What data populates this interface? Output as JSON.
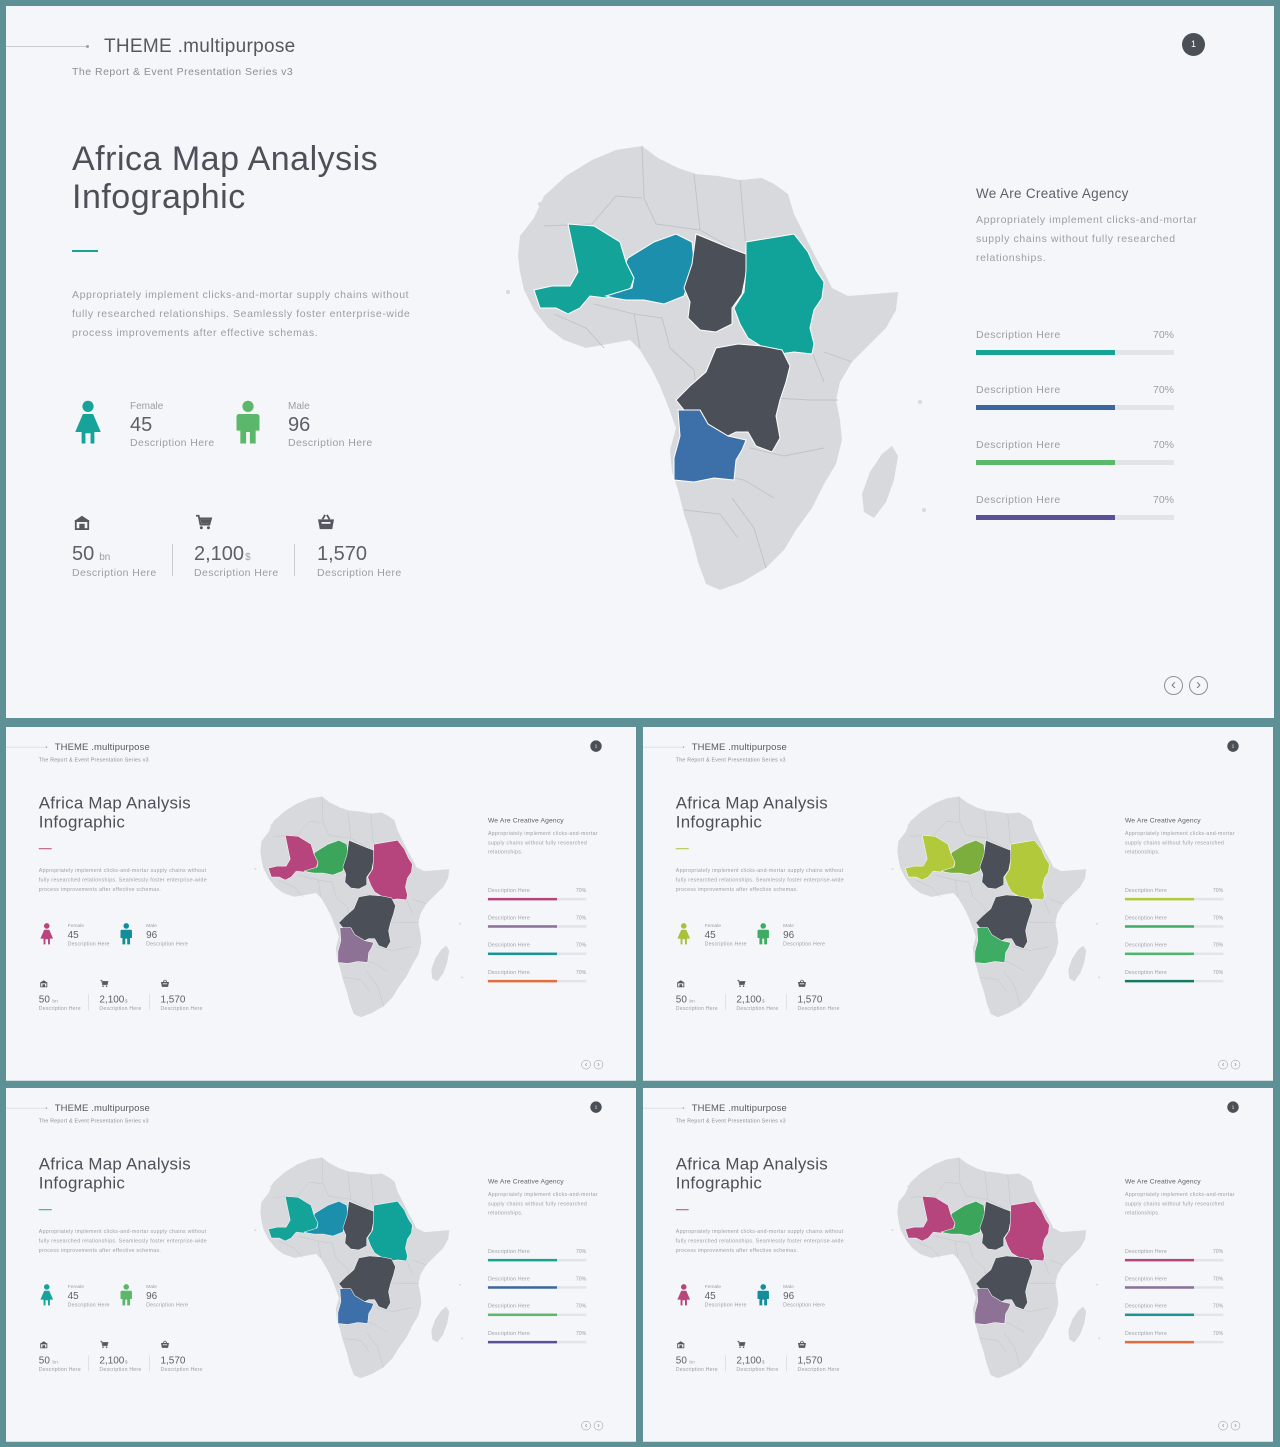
{
  "brand": "THEME .multipurpose",
  "series": "The Report & Event Presentation Series v3",
  "page_number": "1",
  "title_line1": "Africa Map Analysis",
  "title_line2": "Infographic",
  "intro": "Appropriately implement clicks-and-mortar supply chains without fully researched relationships. Seamlessly foster enterprise-wide process improvements after effective schemas.",
  "people": [
    {
      "label": "Female",
      "value": "45",
      "desc": "Description Here",
      "icon": "female-icon"
    },
    {
      "label": "Male",
      "value": "96",
      "desc": "Description Here",
      "icon": "male-icon"
    }
  ],
  "stats": [
    {
      "value": "50",
      "unit": "bn",
      "desc": "Description Here",
      "icon": "store-icon"
    },
    {
      "value": "2,100",
      "unit": "$",
      "desc": "Description Here",
      "icon": "cart-icon"
    },
    {
      "value": "1,570",
      "unit": "",
      "desc": "Description Here",
      "icon": "basket-icon"
    }
  ],
  "agency_title": "We Are Creative Agency",
  "agency_text": "Appropriately implement clicks-and-mortar supply chains without fully researched relationships.",
  "bars": [
    {
      "label": "Description Here",
      "value_text": "70%",
      "value": 0.7
    },
    {
      "label": "Description Here",
      "value_text": "70%",
      "value": 0.7
    },
    {
      "label": "Description Here",
      "value_text": "70%",
      "value": 0.7
    },
    {
      "label": "Description Here",
      "value_text": "70%",
      "value": 0.7
    }
  ],
  "nav": {
    "prev": "‹",
    "next": "›"
  },
  "colors": {
    "land": "#d7d9dd",
    "dark_country": "#4b4f58",
    "frame": "#5e9196"
  },
  "themes": [
    {
      "name": "teal-blue",
      "accent": "#1aa392",
      "female": "#17a399",
      "male": "#5bb86a",
      "countries": {
        "mali": "#13a398",
        "niger": "#1b8fab",
        "chad": "#4b4f58",
        "sudan": "#11a39a",
        "drc": "#4b4f58",
        "angola": "#3d6fa8"
      },
      "bars": [
        "#15a393",
        "#3c66a0",
        "#5cb86a",
        "#5b4f95"
      ]
    },
    {
      "name": "magenta-green",
      "accent": "#b6467c",
      "female": "#b6467c",
      "male": "#138d9b",
      "countries": {
        "mali": "#b6457d",
        "niger": "#3ca55c",
        "chad": "#4b4f58",
        "sudan": "#b6457d",
        "drc": "#4b4f58",
        "angola": "#8d7296"
      },
      "bars": [
        "#b3457c",
        "#8a7197",
        "#1a9494",
        "#e46d3f"
      ]
    },
    {
      "name": "lime-green",
      "accent": "#a8c03a",
      "female": "#a8c03a",
      "male": "#3fac63",
      "countries": {
        "mali": "#b3c93c",
        "niger": "#7cae3d",
        "chad": "#4b4f58",
        "sudan": "#b3c93c",
        "drc": "#4b4f58",
        "angola": "#3fac63"
      },
      "bars": [
        "#b3c93c",
        "#3fac63",
        "#4db66c",
        "#157a64"
      ]
    },
    {
      "name": "teal-blue-2",
      "accent": "#1aa392",
      "female": "#17a399",
      "male": "#5bb86a",
      "countries": {
        "mali": "#13a398",
        "niger": "#1b8fab",
        "chad": "#4b4f58",
        "sudan": "#11a39a",
        "drc": "#4b4f58",
        "angola": "#3d6fa8"
      },
      "bars": [
        "#15a393",
        "#3c66a0",
        "#5cb86a",
        "#5b4f95"
      ]
    },
    {
      "name": "magenta-green-2",
      "accent": "#b6467c",
      "female": "#b6467c",
      "male": "#138d9b",
      "countries": {
        "mali": "#b6457d",
        "niger": "#3ca55c",
        "chad": "#4b4f58",
        "sudan": "#b6457d",
        "drc": "#4b4f58",
        "angola": "#8d7296"
      },
      "bars": [
        "#b3457c",
        "#8a7197",
        "#1a9494",
        "#e46d3f"
      ]
    }
  ]
}
